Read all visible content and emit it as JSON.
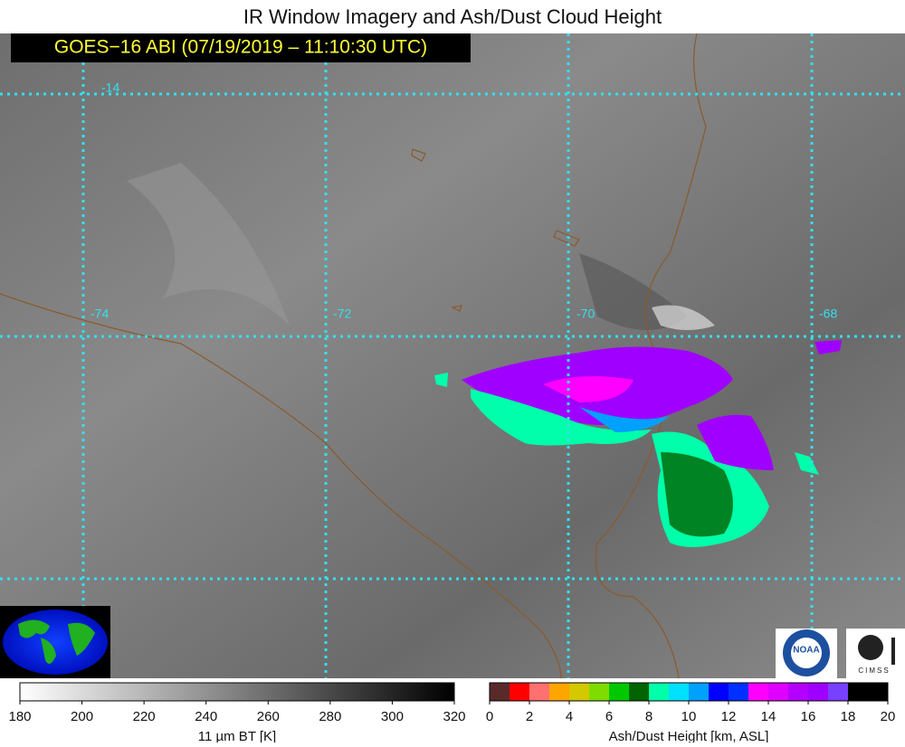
{
  "title": "IR Window Imagery and Ash/Dust Cloud Height",
  "subtitle": "GOES−16 ABI (07/19/2019 – 11:10:30 UTC)",
  "grid_labels": {
    "lat": [
      "-14"
    ],
    "lon": [
      "-74",
      "-72",
      "-70",
      "-68"
    ]
  },
  "logos": [
    "NOAA",
    "CIMSS"
  ],
  "colorbars": [
    {
      "label": "11 µm BT [K]",
      "ticks": [
        180,
        200,
        220,
        240,
        260,
        280,
        300,
        320
      ],
      "colors": [
        "#ffffff",
        "#000000"
      ]
    },
    {
      "label": "Ash/Dust Height [km, ASL]",
      "ticks": [
        0,
        2,
        4,
        6,
        8,
        10,
        12,
        14,
        16,
        18,
        20
      ],
      "colors": [
        "#5a2a2a",
        "#ff0000",
        "#ff7070",
        "#ffa500",
        "#d4c800",
        "#7fdc00",
        "#00c800",
        "#006400",
        "#00ffaa",
        "#00e0ff",
        "#00a0ff",
        "#0000ff",
        "#0030ff",
        "#ff00ff",
        "#e000ff",
        "#b400ff",
        "#a000ff",
        "#7840ff",
        "#000000",
        "#000000"
      ]
    }
  ]
}
